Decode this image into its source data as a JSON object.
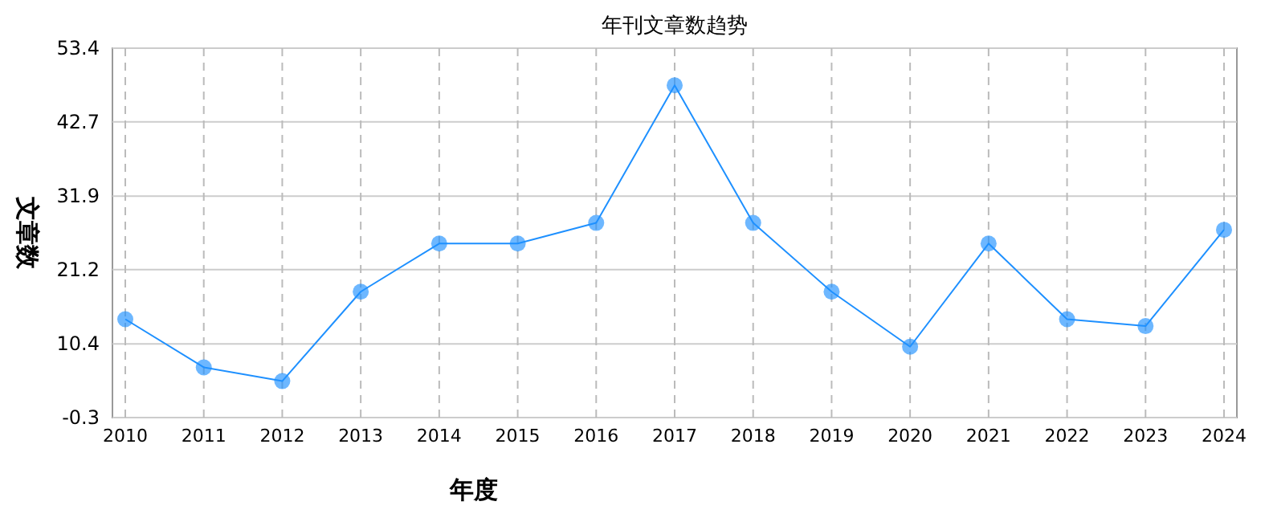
{
  "chart_data": {
    "type": "line",
    "title": "年刊文章数趋势",
    "xlabel": "年度",
    "ylabel": "文章数",
    "categories": [
      "2010",
      "2011",
      "2012",
      "2013",
      "2014",
      "2015",
      "2016",
      "2017",
      "2018",
      "2019",
      "2020",
      "2021",
      "2022",
      "2023",
      "2024"
    ],
    "series": [
      {
        "color": "#1e90ff",
        "values": [
          14,
          7,
          5,
          18,
          25,
          25,
          28,
          48,
          28,
          18,
          10,
          25,
          14,
          13,
          27
        ]
      }
    ],
    "ylim": [
      -0.3,
      53.4
    ],
    "yticks": [
      -0.3,
      10.4,
      21.2,
      31.9,
      42.7,
      53.4
    ],
    "grid": true,
    "marker": "circle",
    "line_style": "solid"
  }
}
